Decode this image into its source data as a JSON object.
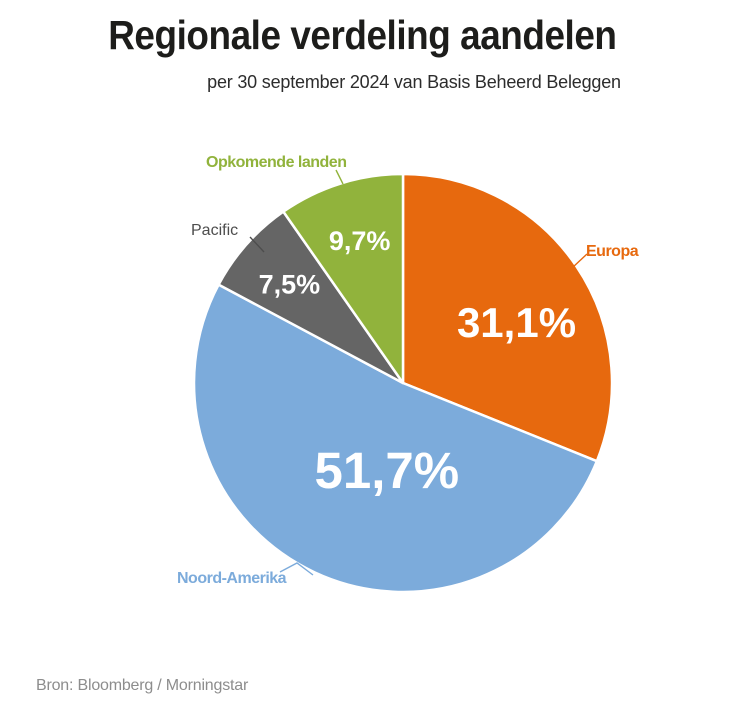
{
  "page": {
    "title": "Regionale verdeling aandelen",
    "subtitle": "per 30 september 2024 van Basis Beheerd Beleggen",
    "source": "Bron: Bloomberg / Morningstar"
  },
  "chart_data": {
    "type": "pie",
    "title": "Regionale verdeling aandelen",
    "subtitle": "per 30 september 2024 van Basis Beheerd Beleggen",
    "unit": "percent",
    "decimal_separator": ",",
    "start_angle_deg": 0,
    "direction": "clockwise",
    "legend_position": "outside-callouts",
    "slices": [
      {
        "label": "Europa",
        "value": 31.1,
        "display_value": "31,1%",
        "color": "#e7690e",
        "label_color": "#e7690e"
      },
      {
        "label": "Noord-Amerika",
        "value": 51.7,
        "display_value": "51,7%",
        "color": "#7cabdb",
        "label_color": "#7cabdb"
      },
      {
        "label": "Pacific",
        "value": 7.5,
        "display_value": "7,5%",
        "color": "#656565",
        "label_color": "#4d4d4d"
      },
      {
        "label": "Opkomende landen",
        "value": 9.7,
        "display_value": "9,7%",
        "color": "#91b33c",
        "label_color": "#91b33c"
      }
    ],
    "source": "Bron: Bloomberg / Morningstar"
  }
}
